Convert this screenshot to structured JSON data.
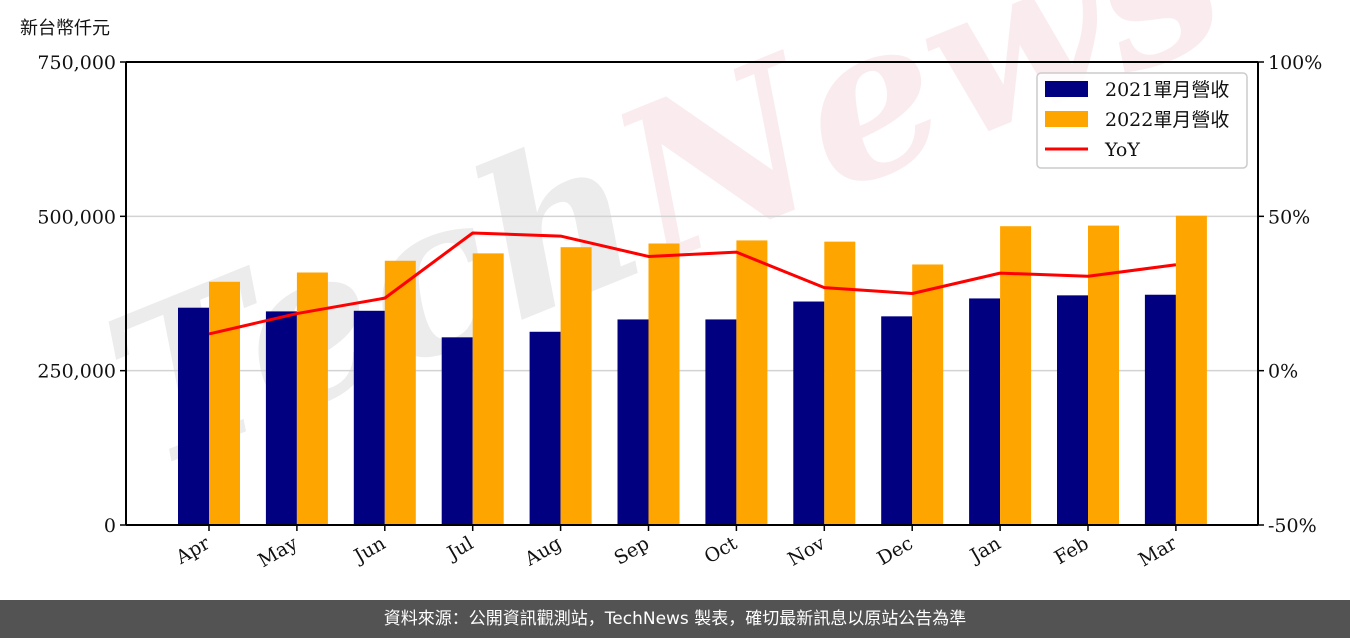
{
  "unit_label": "新台幣仟元",
  "footer": {
    "source_text": "資料來源：公開資訊觀測站，TechNews 製表，確切最新訊息以原站公告為準"
  },
  "watermark": {
    "text": "TechNews",
    "colors": {
      "tech": "#e6e6e6",
      "news": "#f8e6e8"
    }
  },
  "colors": {
    "series_2021": "#000080",
    "series_2022": "#ffa500",
    "yoy": "#ff0000",
    "grid": "#d3d3d3",
    "footer_bg": "#535353"
  },
  "chart_data": {
    "type": "bar",
    "title": "",
    "xlabel": "",
    "ylabel": "新台幣仟元",
    "y2label": "",
    "categories": [
      "Apr",
      "May",
      "Jun",
      "Jul",
      "Aug",
      "Sep",
      "Oct",
      "Nov",
      "Dec",
      "Jan",
      "Feb",
      "Mar"
    ],
    "series": [
      {
        "name": "2021單月營收",
        "type": "bar",
        "axis": "left",
        "color": "#000080",
        "values": [
          352000,
          346000,
          347000,
          304000,
          313000,
          333000,
          333000,
          362000,
          338000,
          367000,
          372000,
          373000
        ]
      },
      {
        "name": "2022單月營收",
        "type": "bar",
        "axis": "left",
        "color": "#ffa500",
        "values": [
          394000,
          409000,
          428000,
          440000,
          450000,
          456000,
          461000,
          459000,
          422000,
          484000,
          485000,
          501000
        ]
      },
      {
        "name": "YoY",
        "type": "line",
        "axis": "right",
        "unit": "%",
        "color": "#ff0000",
        "values": [
          11.9,
          18.5,
          23.5,
          44.6,
          43.6,
          37.0,
          38.4,
          26.9,
          25.0,
          31.6,
          30.6,
          34.3
        ]
      }
    ],
    "ylim": [
      0,
      750000
    ],
    "y_ticks": [
      0,
      250000,
      500000,
      750000
    ],
    "y_tick_labels": [
      "0",
      "250,000",
      "500,000",
      "750,000"
    ],
    "y2lim": [
      -50,
      100
    ],
    "y2_ticks": [
      -50,
      0,
      50,
      100
    ],
    "y2_tick_labels": [
      "-50%",
      "0%",
      "50%",
      "100%"
    ],
    "grid": "horizontal at 250,000 and 500,000",
    "legend": {
      "position": "upper right",
      "entries": [
        "2021單月營收",
        "2022單月營收",
        "YoY"
      ]
    },
    "x_tick_rotation": 30
  }
}
